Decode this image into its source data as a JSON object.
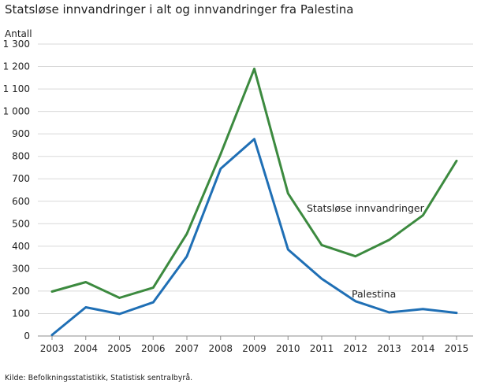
{
  "chart_data": {
    "type": "line",
    "title": "Statsløse innvandringer i alt og innvandringer fra Palestina",
    "ylabel": "Antall",
    "xlabel": "",
    "source": "Kilde: Befolkningsstatistikk, Statistisk sentralbyrå.",
    "x": [
      "2003",
      "2004",
      "2005",
      "2006",
      "2007",
      "2008",
      "2009",
      "2010",
      "2011",
      "2012",
      "2013",
      "2014",
      "2015"
    ],
    "ylim": [
      0,
      1300
    ],
    "yticks": [
      0,
      100,
      200,
      300,
      400,
      500,
      600,
      700,
      800,
      900,
      1000,
      1100,
      1200,
      1300
    ],
    "ytick_labels": [
      "0",
      "100",
      "200",
      "300",
      "400",
      "500",
      "600",
      "700",
      "800",
      "900",
      "1 000",
      "1 100",
      "1 200",
      "1 300"
    ],
    "grid": true,
    "series": [
      {
        "name": "Statsløse innvandringer",
        "color": "#3c8a3f",
        "values": [
          198,
          240,
          170,
          215,
          455,
          810,
          1190,
          635,
          405,
          355,
          428,
          537,
          780
        ]
      },
      {
        "name": "Palestina",
        "color": "#1f6fb5",
        "values": [
          5,
          128,
          98,
          150,
          355,
          745,
          877,
          385,
          255,
          155,
          105,
          120,
          103
        ]
      }
    ]
  }
}
